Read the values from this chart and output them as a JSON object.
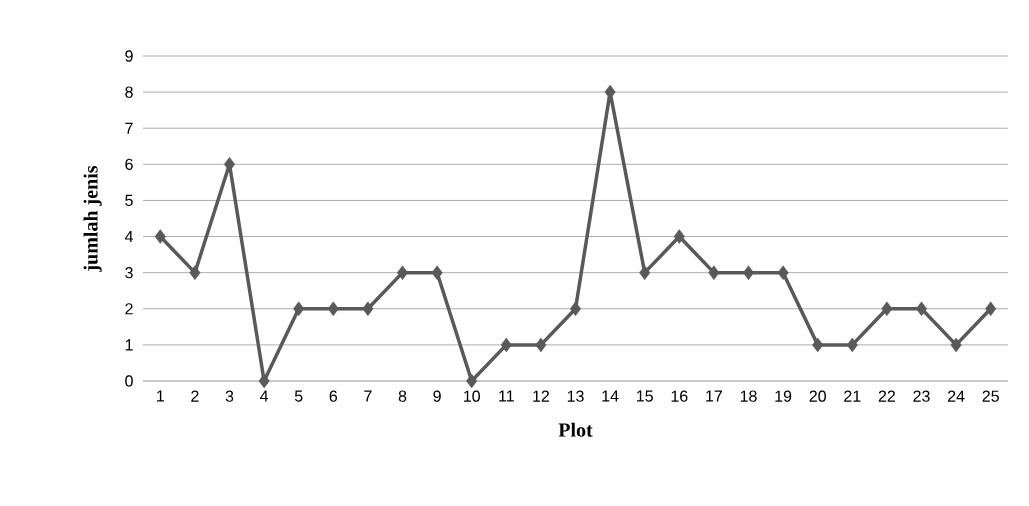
{
  "chart_data": {
    "type": "line",
    "xlabel": "Plot",
    "ylabel": "jumlah jenis",
    "categories": [
      "1",
      "2",
      "3",
      "4",
      "5",
      "6",
      "7",
      "8",
      "9",
      "10",
      "11",
      "12",
      "13",
      "14",
      "15",
      "16",
      "17",
      "18",
      "19",
      "20",
      "21",
      "22",
      "23",
      "24",
      "25"
    ],
    "series": [
      {
        "color": "#595959",
        "values": [
          4,
          3,
          6,
          0,
          2,
          2,
          2,
          3,
          3,
          0,
          1,
          1,
          2,
          8,
          3,
          4,
          3,
          3,
          3,
          1,
          1,
          2,
          2,
          1,
          2
        ]
      }
    ],
    "ylim": [
      0,
      9
    ],
    "yticks": [
      0,
      1,
      2,
      3,
      4,
      5,
      6,
      7,
      8,
      9
    ],
    "grid": "y",
    "marker": "diamond",
    "line_style": "solid"
  }
}
